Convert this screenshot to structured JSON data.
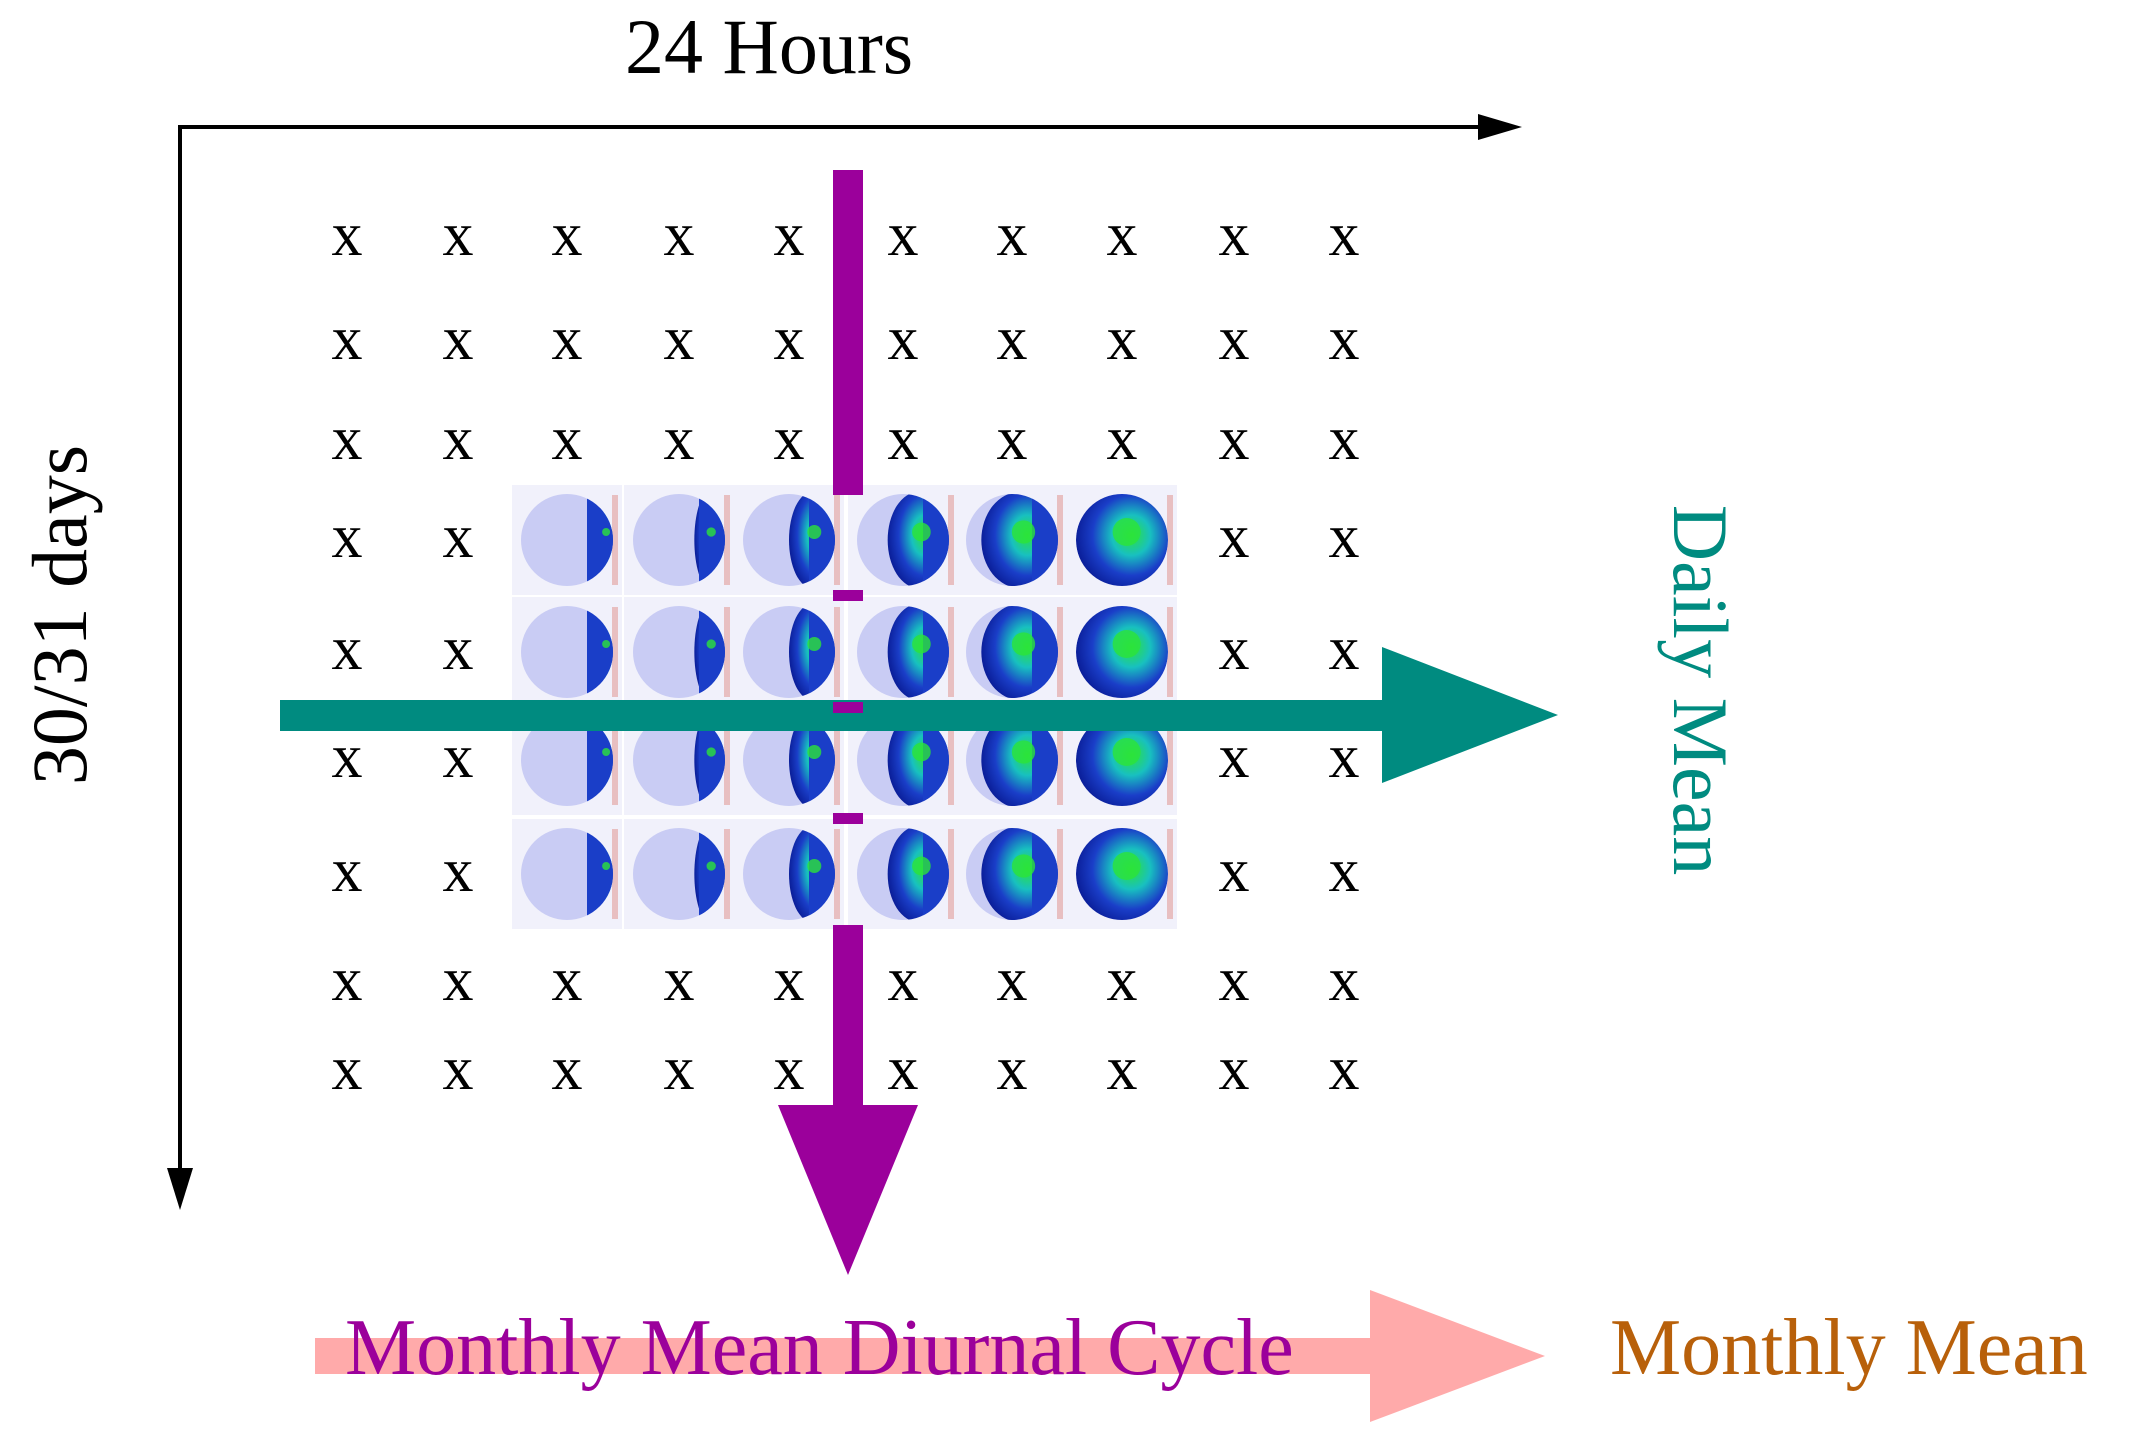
{
  "axes": {
    "horizontal_label": "24 Hours",
    "vertical_label": "30/31 days"
  },
  "grid": {
    "columns": 10,
    "rows": 9,
    "marker": "x",
    "globe_columns": [
      2,
      3,
      4,
      5,
      6,
      7
    ],
    "globe_rows": [
      3,
      4,
      5,
      6
    ],
    "globe_icon": "earth-globe-icon"
  },
  "arrows": {
    "daily_mean": {
      "label": "Daily Mean",
      "color": "#008b80"
    },
    "diurnal_cycle": {
      "label": "Monthly Mean Diurnal Cycle",
      "color": "#9b009b",
      "text_color": "#9b009b"
    },
    "monthly_mean": {
      "label": "Monthly Mean",
      "color": "#ffaaaa",
      "text_color": "#b8600a"
    }
  },
  "colors": {
    "axis": "#000000",
    "globe_night": "#c9ccf4",
    "globe_day": "#1a3ec8",
    "globe_veg": "#2ce33a"
  }
}
